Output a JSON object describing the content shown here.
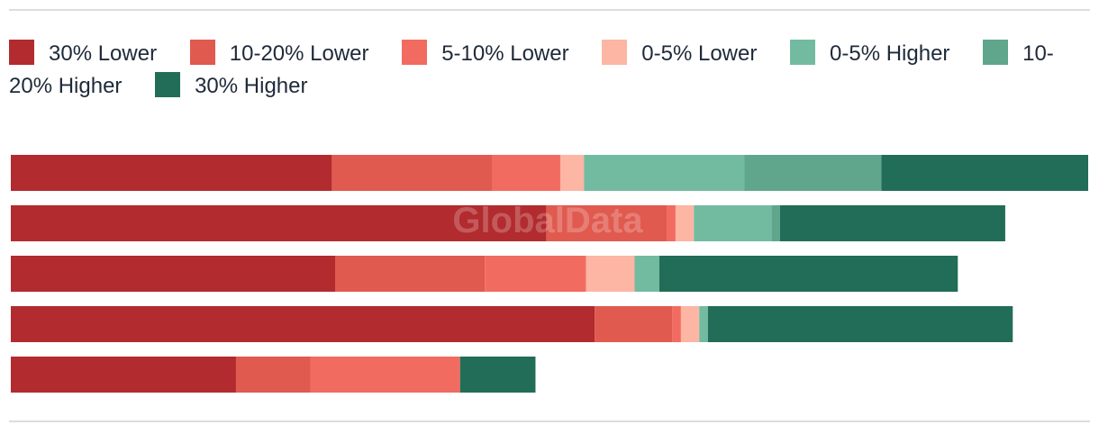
{
  "chart_data": {
    "type": "bar",
    "orientation": "horizontal",
    "stacked": true,
    "watermark": "GlobalData",
    "legend_position": "top",
    "categories": [
      "",
      "",
      "",
      "",
      ""
    ],
    "series": [
      {
        "name": "30% Lower",
        "color": "#b22b2e",
        "values": [
          29.8,
          49.7,
          30.1,
          54.2,
          20.9
        ]
      },
      {
        "name": "10-20% Lower",
        "color": "#e05a4f",
        "values": [
          14.9,
          11.2,
          13.9,
          7.2,
          6.9
        ]
      },
      {
        "name": "5-10% Lower",
        "color": "#f26b60",
        "values": [
          6.3,
          0.8,
          9.4,
          0.8,
          13.9
        ]
      },
      {
        "name": "0-5% Lower",
        "color": "#fdb5a4",
        "values": [
          2.2,
          1.7,
          4.5,
          1.7,
          0.0
        ]
      },
      {
        "name": "0-5% Higher",
        "color": "#72bba1",
        "values": [
          14.9,
          7.2,
          2.3,
          0.8,
          0.0
        ]
      },
      {
        "name": "10-20% Higher",
        "color": "#5fa68d",
        "values": [
          12.7,
          0.8,
          0.0,
          0.0,
          0.0
        ]
      },
      {
        "name": "30% Higher",
        "color": "#226d57",
        "values": [
          19.2,
          20.9,
          27.7,
          28.3,
          7.0
        ]
      }
    ],
    "xlim": [
      0,
      100
    ],
    "grid": false
  }
}
